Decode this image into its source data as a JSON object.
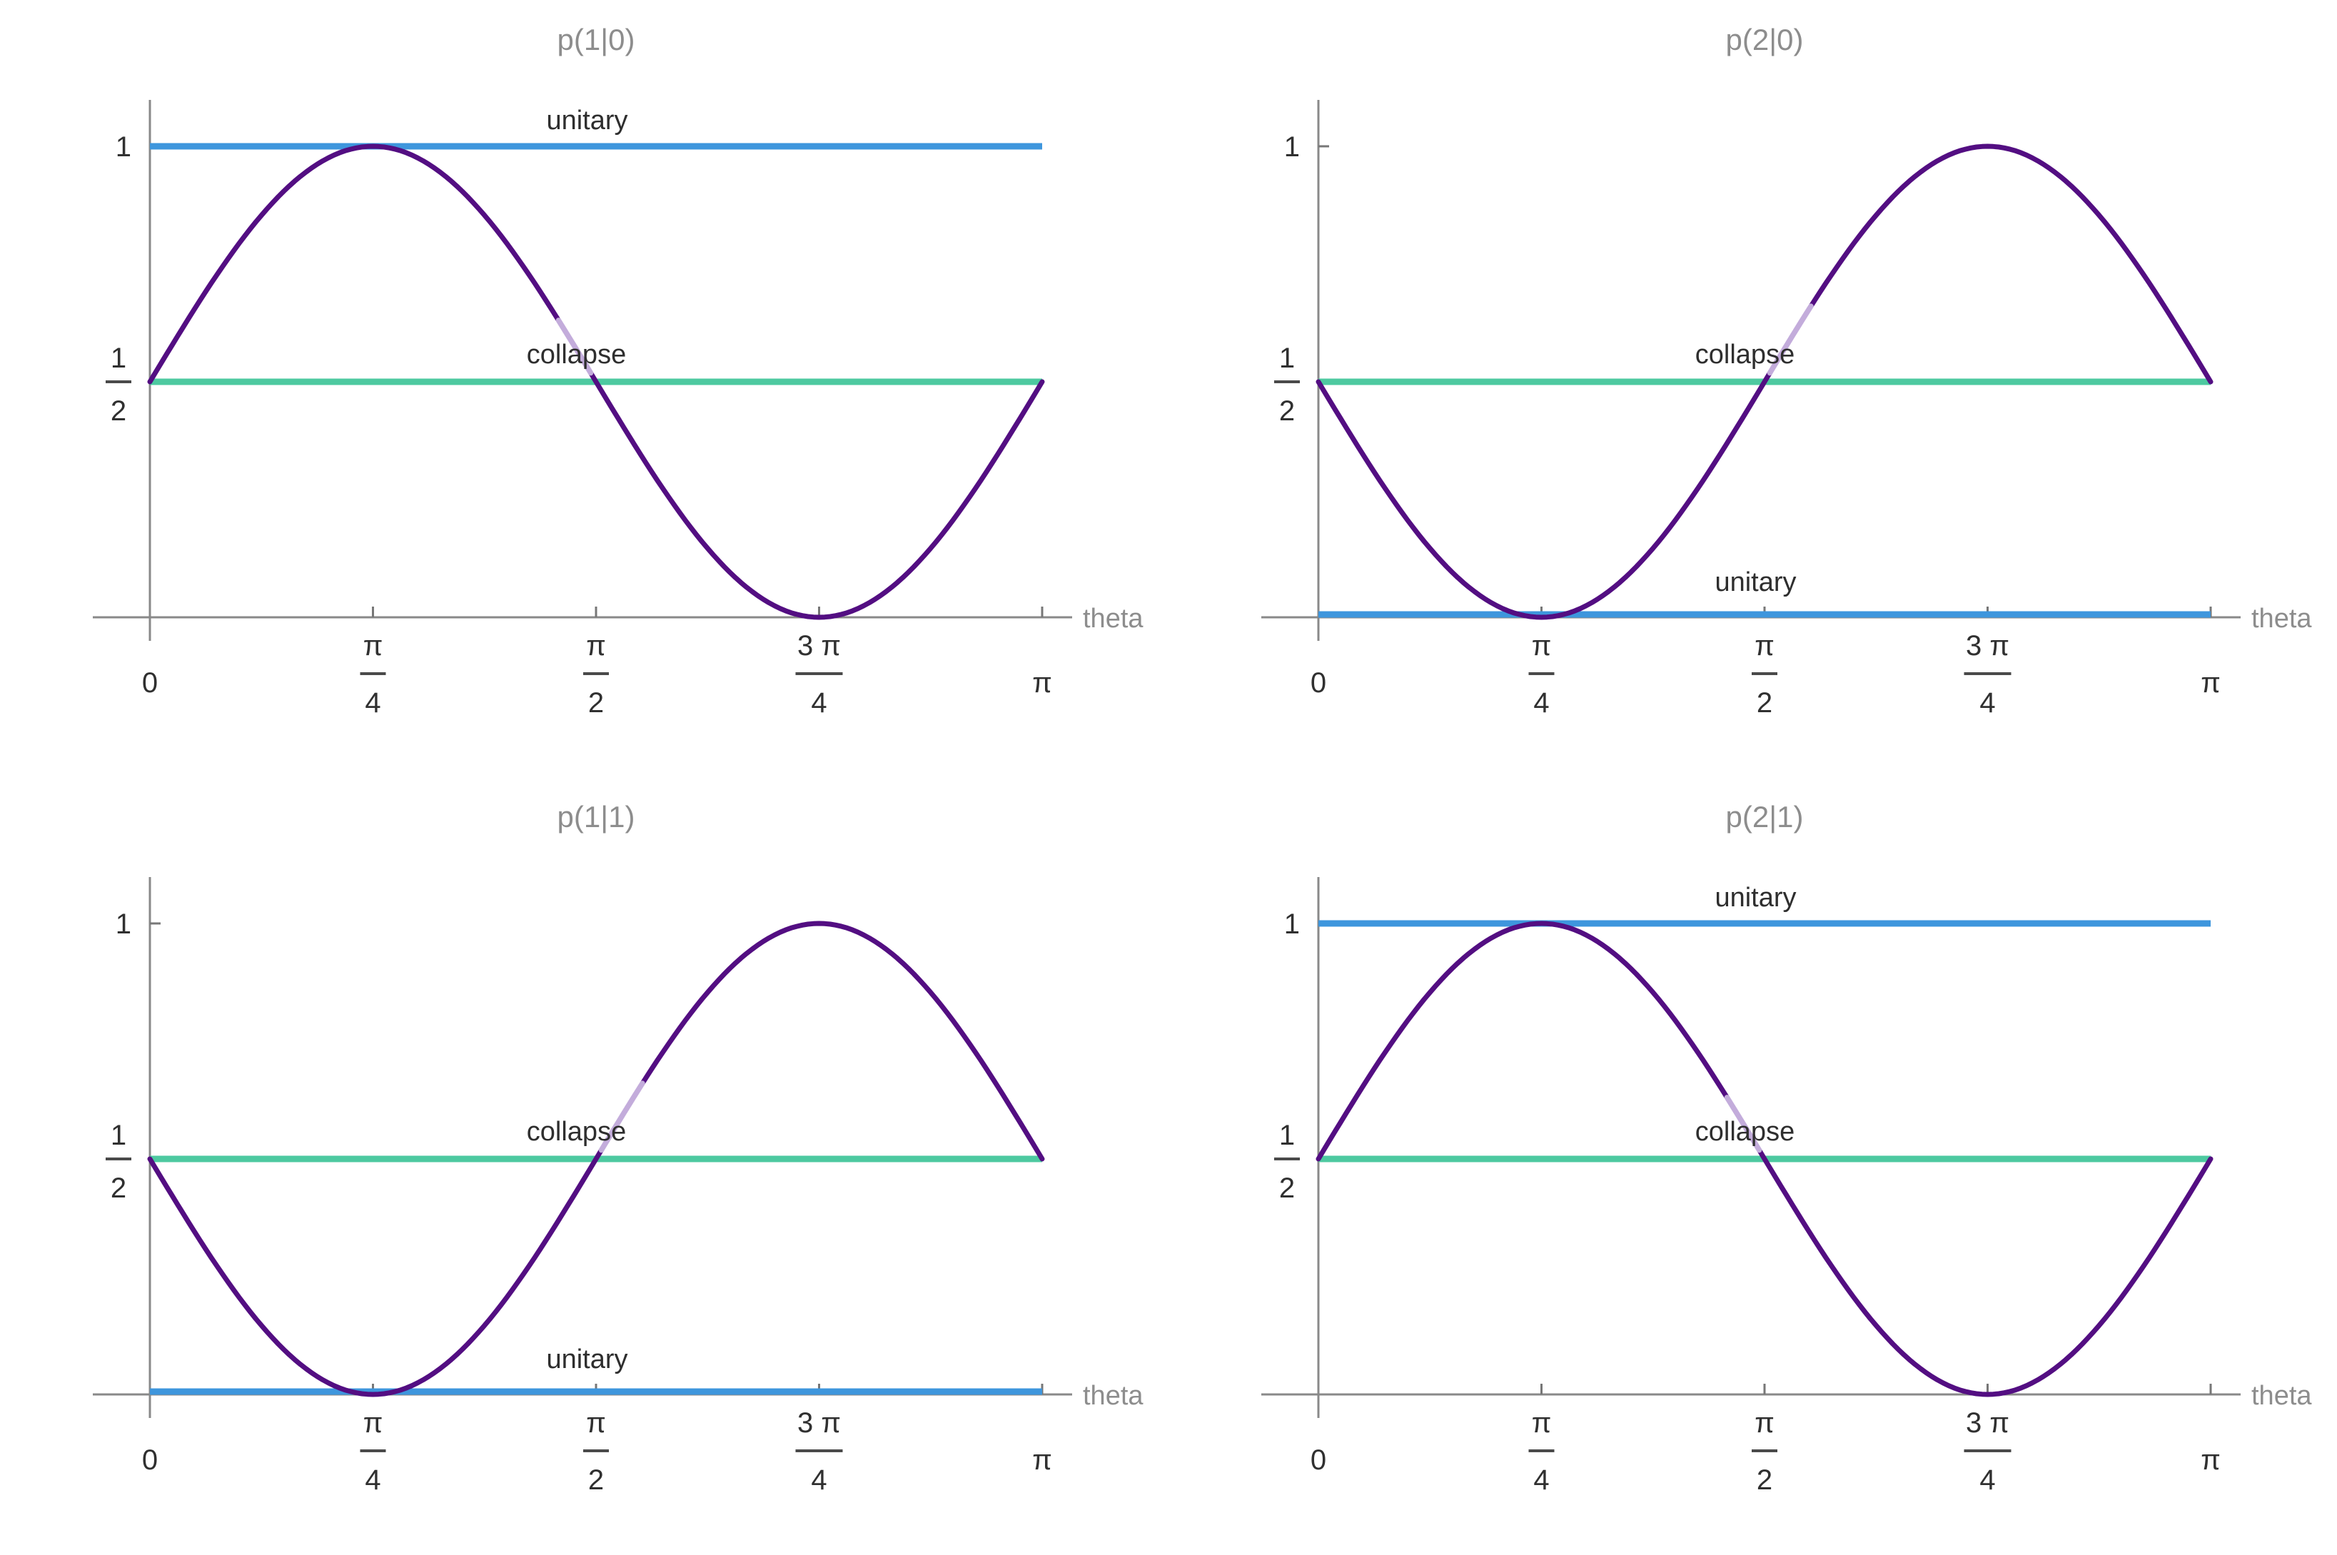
{
  "page": {
    "background": "#ffffff"
  },
  "colors": {
    "curve": "#530e82",
    "curve_faded": "#c9b5df",
    "unitary_line": "#3e96dd",
    "collapse_line": "#4dc9a0",
    "axis": "#898989",
    "tick_mark": "#777777",
    "fraction_bar": "#4a4a4a",
    "tick_text": "#303030",
    "series_label_text": "#2e2e2e",
    "muted_text": "#8d8d8d"
  },
  "grid": {
    "rows": 2,
    "cols": 2
  },
  "chart_data": [
    {
      "type": "line",
      "title": "p(1|0)",
      "xlabel": "theta",
      "xlim_pi": [
        0,
        1
      ],
      "ylim": [
        0,
        1
      ],
      "x_tick_values_pi": [
        0,
        0.25,
        0.5,
        0.75,
        1
      ],
      "x_ticks": [
        {
          "value_pi": 0,
          "label": "0"
        },
        {
          "value_pi": 0.25,
          "label": "π/4",
          "num": "π",
          "den": "4"
        },
        {
          "value_pi": 0.5,
          "label": "π/2",
          "num": "π",
          "den": "2"
        },
        {
          "value_pi": 0.75,
          "label": "3π/4",
          "num": "3 π",
          "den": "4"
        },
        {
          "value_pi": 1,
          "label": "π"
        }
      ],
      "y_ticks": [
        {
          "value": 0.5,
          "label": "1/2",
          "num": "1",
          "den": "2"
        },
        {
          "value": 1,
          "label": "1"
        }
      ],
      "series": [
        {
          "name": "unitary",
          "type": "hline",
          "label": "unitary",
          "value": 1,
          "color": "#3e96dd"
        },
        {
          "name": "collapse",
          "type": "hline",
          "label": "collapse",
          "value": 0.5,
          "color": "#4dc9a0"
        },
        {
          "name": "probability-curve",
          "type": "curve",
          "formula": "(1 + sin(2 θ))/2",
          "sin2theta_sign": 1,
          "color": "#530e82",
          "points_pi": [
            [
              0,
              0.5
            ],
            [
              0.25,
              1
            ],
            [
              0.5,
              0.5
            ],
            [
              0.75,
              0
            ],
            [
              1,
              0.5
            ]
          ]
        }
      ]
    },
    {
      "type": "line",
      "title": "p(2|0)",
      "xlabel": "theta",
      "xlim_pi": [
        0,
        1
      ],
      "ylim": [
        0,
        1
      ],
      "x_tick_values_pi": [
        0,
        0.25,
        0.5,
        0.75,
        1
      ],
      "x_ticks": [
        {
          "value_pi": 0,
          "label": "0"
        },
        {
          "value_pi": 0.25,
          "label": "π/4",
          "num": "π",
          "den": "4"
        },
        {
          "value_pi": 0.5,
          "label": "π/2",
          "num": "π",
          "den": "2"
        },
        {
          "value_pi": 0.75,
          "label": "3π/4",
          "num": "3 π",
          "den": "4"
        },
        {
          "value_pi": 1,
          "label": "π"
        }
      ],
      "y_ticks": [
        {
          "value": 0.5,
          "label": "1/2",
          "num": "1",
          "den": "2"
        },
        {
          "value": 1,
          "label": "1"
        }
      ],
      "series": [
        {
          "name": "unitary",
          "type": "hline",
          "label": "unitary",
          "value": 0,
          "color": "#3e96dd"
        },
        {
          "name": "collapse",
          "type": "hline",
          "label": "collapse",
          "value": 0.5,
          "color": "#4dc9a0"
        },
        {
          "name": "probability-curve",
          "type": "curve",
          "formula": "(1 - sin(2 θ))/2",
          "sin2theta_sign": -1,
          "color": "#530e82",
          "points_pi": [
            [
              0,
              0.5
            ],
            [
              0.25,
              0
            ],
            [
              0.5,
              0.5
            ],
            [
              0.75,
              1
            ],
            [
              1,
              0.5
            ]
          ]
        }
      ]
    },
    {
      "type": "line",
      "title": "p(1|1)",
      "xlabel": "theta",
      "xlim_pi": [
        0,
        1
      ],
      "ylim": [
        0,
        1
      ],
      "x_tick_values_pi": [
        0,
        0.25,
        0.5,
        0.75,
        1
      ],
      "x_ticks": [
        {
          "value_pi": 0,
          "label": "0"
        },
        {
          "value_pi": 0.25,
          "label": "π/4",
          "num": "π",
          "den": "4"
        },
        {
          "value_pi": 0.5,
          "label": "π/2",
          "num": "π",
          "den": "2"
        },
        {
          "value_pi": 0.75,
          "label": "3π/4",
          "num": "3 π",
          "den": "4"
        },
        {
          "value_pi": 1,
          "label": "π"
        }
      ],
      "y_ticks": [
        {
          "value": 0.5,
          "label": "1/2",
          "num": "1",
          "den": "2"
        },
        {
          "value": 1,
          "label": "1"
        }
      ],
      "series": [
        {
          "name": "unitary",
          "type": "hline",
          "label": "unitary",
          "value": 0,
          "color": "#3e96dd"
        },
        {
          "name": "collapse",
          "type": "hline",
          "label": "collapse",
          "value": 0.5,
          "color": "#4dc9a0"
        },
        {
          "name": "probability-curve",
          "type": "curve",
          "formula": "(1 - sin(2 θ))/2",
          "sin2theta_sign": -1,
          "color": "#530e82",
          "points_pi": [
            [
              0,
              0.5
            ],
            [
              0.25,
              0
            ],
            [
              0.5,
              0.5
            ],
            [
              0.75,
              1
            ],
            [
              1,
              0.5
            ]
          ]
        }
      ]
    },
    {
      "type": "line",
      "title": "p(2|1)",
      "xlabel": "theta",
      "xlim_pi": [
        0,
        1
      ],
      "ylim": [
        0,
        1
      ],
      "x_tick_values_pi": [
        0,
        0.25,
        0.5,
        0.75,
        1
      ],
      "x_ticks": [
        {
          "value_pi": 0,
          "label": "0"
        },
        {
          "value_pi": 0.25,
          "label": "π/4",
          "num": "π",
          "den": "4"
        },
        {
          "value_pi": 0.5,
          "label": "π/2",
          "num": "π",
          "den": "2"
        },
        {
          "value_pi": 0.75,
          "label": "3π/4",
          "num": "3 π",
          "den": "4"
        },
        {
          "value_pi": 1,
          "label": "π"
        }
      ],
      "y_ticks": [
        {
          "value": 0.5,
          "label": "1/2",
          "num": "1",
          "den": "2"
        },
        {
          "value": 1,
          "label": "1"
        }
      ],
      "series": [
        {
          "name": "unitary",
          "type": "hline",
          "label": "unitary",
          "value": 1,
          "color": "#3e96dd"
        },
        {
          "name": "collapse",
          "type": "hline",
          "label": "collapse",
          "value": 0.5,
          "color": "#4dc9a0"
        },
        {
          "name": "probability-curve",
          "type": "curve",
          "formula": "(1 + sin(2 θ))/2",
          "sin2theta_sign": 1,
          "color": "#530e82",
          "points_pi": [
            [
              0,
              0.5
            ],
            [
              0.25,
              1
            ],
            [
              0.5,
              0.5
            ],
            [
              0.75,
              0
            ],
            [
              1,
              0.5
            ]
          ]
        }
      ]
    }
  ]
}
